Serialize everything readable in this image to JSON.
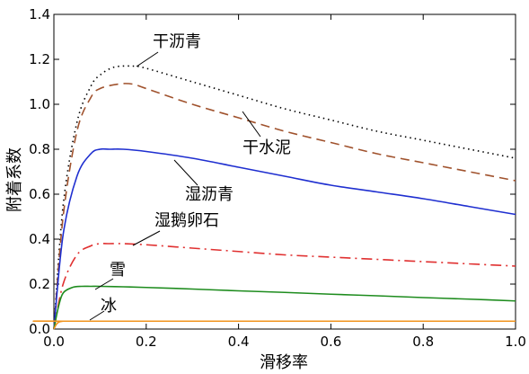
{
  "chart_data": {
    "type": "line",
    "xlabel": "滑移率",
    "ylabel": "附着系数",
    "xlim": [
      0,
      1
    ],
    "ylim": [
      0,
      1.4
    ],
    "x_ticks": [
      "0.0",
      "0.2",
      "0.4",
      "0.6",
      "0.8",
      "1.0"
    ],
    "y_ticks": [
      "0.0",
      "0.2",
      "0.4",
      "0.6",
      "0.8",
      "1.0",
      "1.2",
      "1.4"
    ],
    "grid": false,
    "series": [
      {
        "name": "干沥青",
        "color": "#000000",
        "style": "dotted",
        "x": [
          0,
          0.02,
          0.05,
          0.08,
          0.1,
          0.13,
          0.17,
          0.2,
          0.3,
          0.4,
          0.5,
          0.6,
          0.7,
          0.8,
          0.9,
          1.0
        ],
        "y": [
          0,
          0.55,
          0.92,
          1.08,
          1.13,
          1.165,
          1.17,
          1.16,
          1.1,
          1.04,
          0.98,
          0.93,
          0.88,
          0.84,
          0.8,
          0.76
        ]
      },
      {
        "name": "干水泥",
        "color": "#A0522D",
        "style": "dashed",
        "x": [
          0,
          0.02,
          0.05,
          0.08,
          0.1,
          0.14,
          0.17,
          0.2,
          0.3,
          0.4,
          0.5,
          0.6,
          0.7,
          0.8,
          0.9,
          1.0
        ],
        "y": [
          0,
          0.5,
          0.88,
          1.03,
          1.07,
          1.09,
          1.09,
          1.07,
          1.0,
          0.94,
          0.88,
          0.83,
          0.78,
          0.74,
          0.7,
          0.66
        ]
      },
      {
        "name": "湿沥青",
        "color": "#1F2FD0",
        "style": "solid",
        "x": [
          0,
          0.02,
          0.05,
          0.08,
          0.1,
          0.12,
          0.15,
          0.2,
          0.3,
          0.4,
          0.5,
          0.6,
          0.7,
          0.8,
          0.9,
          1.0
        ],
        "y": [
          0,
          0.42,
          0.68,
          0.78,
          0.8,
          0.8,
          0.8,
          0.79,
          0.76,
          0.72,
          0.68,
          0.64,
          0.61,
          0.58,
          0.545,
          0.51
        ]
      },
      {
        "name": "湿鹅卵石",
        "color": "#E03030",
        "style": "dash-dot",
        "x": [
          0,
          0.02,
          0.05,
          0.08,
          0.1,
          0.12,
          0.15,
          0.2,
          0.3,
          0.4,
          0.5,
          0.6,
          0.7,
          0.8,
          0.9,
          1.0
        ],
        "y": [
          0,
          0.2,
          0.33,
          0.37,
          0.38,
          0.38,
          0.38,
          0.375,
          0.36,
          0.345,
          0.33,
          0.32,
          0.31,
          0.3,
          0.29,
          0.28
        ]
      },
      {
        "name": "雪",
        "color": "#1E8C1E",
        "style": "solid",
        "x": [
          0,
          0.01,
          0.02,
          0.04,
          0.06,
          0.08,
          0.1,
          0.15,
          0.2,
          0.3,
          0.4,
          0.5,
          0.6,
          0.7,
          0.8,
          0.9,
          1.0
        ],
        "y": [
          0,
          0.1,
          0.16,
          0.185,
          0.19,
          0.19,
          0.19,
          0.188,
          0.185,
          0.178,
          0.17,
          0.163,
          0.155,
          0.148,
          0.14,
          0.133,
          0.125
        ]
      },
      {
        "name": "冰",
        "color": "#F0941E",
        "style": "solid",
        "x": [
          0,
          0.005,
          0.01,
          0.02,
          0.03,
          1.0
        ],
        "y": [
          0,
          0.02,
          0.03,
          0.035,
          0.035,
          0.035
        ]
      }
    ],
    "annotations": [
      {
        "text": "干沥青",
        "series": 0
      },
      {
        "text": "干水泥",
        "series": 1
      },
      {
        "text": "湿沥青",
        "series": 2
      },
      {
        "text": "湿鹅卵石",
        "series": 3
      },
      {
        "text": "雪",
        "series": 4
      },
      {
        "text": "冰",
        "series": 5
      }
    ]
  }
}
